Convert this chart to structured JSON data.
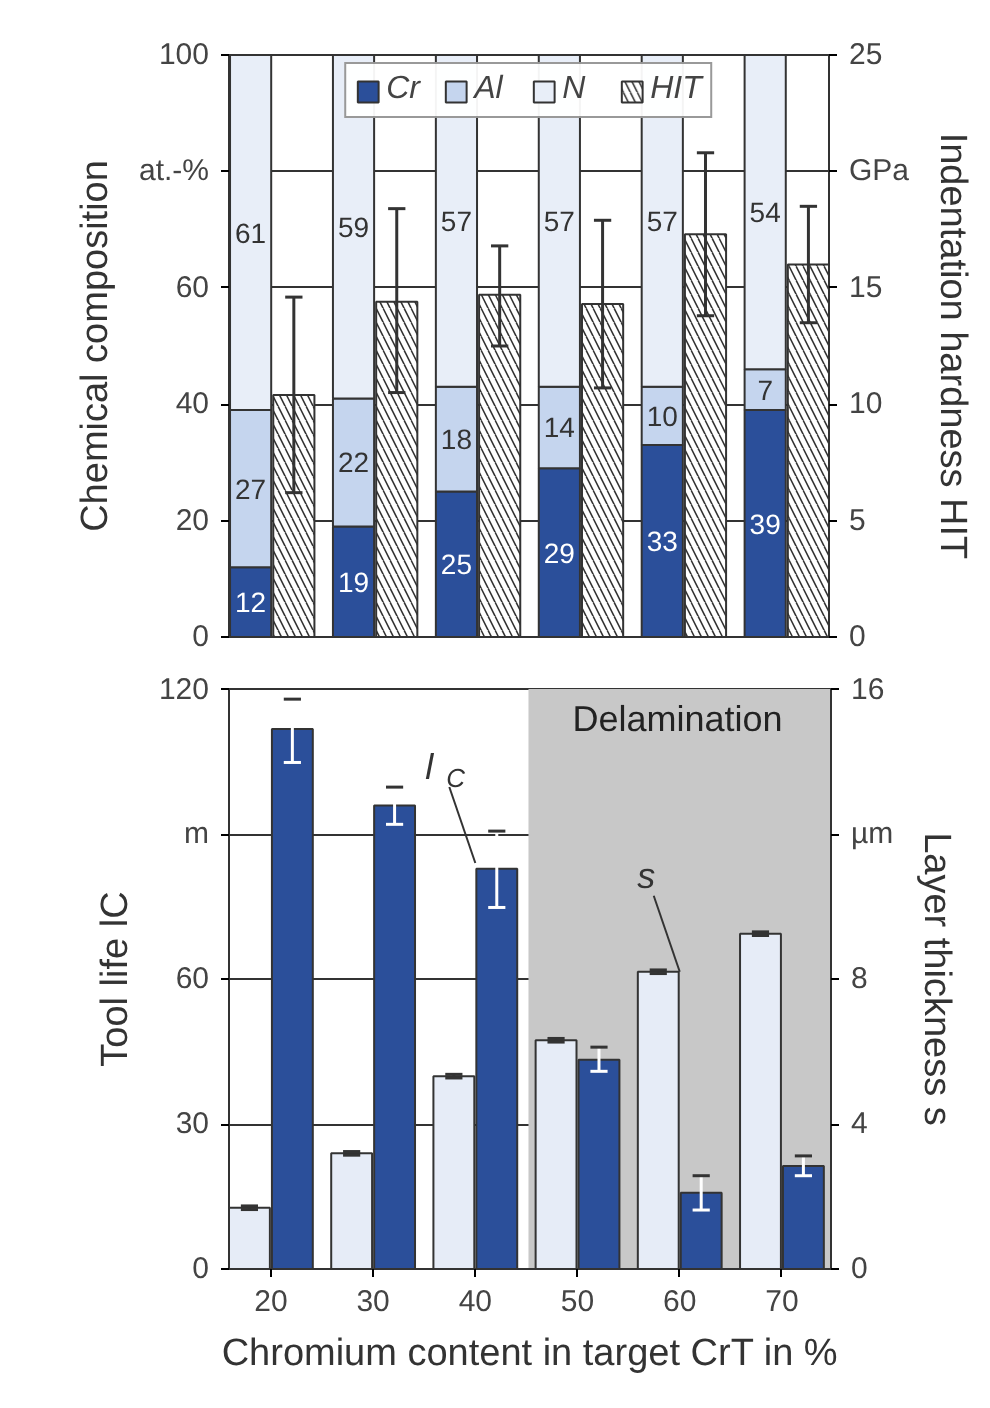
{
  "chart_data": [
    {
      "type": "bar",
      "ylabel": "Chemical composition",
      "y2label": "Indentation hardness HIT",
      "stacked": true,
      "grid": "y",
      "legend": "top",
      "tick_labels": "y",
      "categories": [
        null,
        null,
        null,
        null,
        null,
        null
      ],
      "ylim": [
        0,
        100
      ],
      "yticks": [
        0,
        20,
        40,
        60,
        {
          "value": 80,
          "label": "at.-%"
        },
        100
      ],
      "y2lim": [
        0,
        25
      ],
      "y2ticks": [
        0,
        5,
        10,
        15,
        {
          "value": 20,
          "label": "GPa"
        },
        25
      ],
      "series": [
        {
          "name": "Cr",
          "color": "#2b4f9a",
          "values": [
            12,
            19,
            25,
            29,
            33,
            39
          ],
          "value_labels": [
            "12",
            "19",
            "25",
            "29",
            "33",
            "39"
          ]
        },
        {
          "name": "Al",
          "color": "#c5d5ee",
          "values": [
            27,
            22,
            18,
            14,
            10,
            7
          ],
          "value_labels": [
            "27",
            "22",
            "18",
            "14",
            "10",
            "7"
          ]
        },
        {
          "name": "N",
          "color": "#e8eef8",
          "values": [
            61,
            59,
            57,
            57,
            57,
            54
          ],
          "value_labels": [
            "61",
            "59",
            "57",
            "57",
            "57",
            "54"
          ]
        },
        {
          "name": "HIT",
          "color": "#ffffff",
          "axis": "y2",
          "values": [
            10.4,
            14.4,
            14.7,
            14.3,
            17.3,
            16.0
          ],
          "errors": [
            [
              6.2,
              14.6
            ],
            [
              10.5,
              18.4
            ],
            [
              12.5,
              16.8
            ],
            [
              10.7,
              17.9
            ],
            [
              13.8,
              20.8
            ],
            [
              13.5,
              18.5
            ]
          ]
        }
      ]
    },
    {
      "type": "bar",
      "ylabel": "Tool life lC",
      "y2label": "Layer thickness s",
      "xlabel": "Chromium content in target CrT in %",
      "grid": "y",
      "x": [
        20,
        30,
        40,
        50,
        60,
        70
      ],
      "xlim": [
        15.9,
        74.8
      ],
      "xticks": [
        20,
        30,
        40,
        50,
        60,
        70
      ],
      "ylim": [
        0,
        120
      ],
      "yticks": [
        0,
        30,
        60,
        {
          "value": 90,
          "label": "m"
        },
        120
      ],
      "y2lim": [
        0,
        16
      ],
      "y2ticks": [
        0,
        4,
        8,
        {
          "value": 12,
          "label": "µm"
        },
        16
      ],
      "bands": [
        {
          "axis": "x",
          "from": 45.2,
          "to": 74.8,
          "label": "Delamination",
          "color": "#c8c8c8"
        }
      ],
      "annotations": [
        {
          "text": "l$_{C}$",
          "x": 40,
          "y": 84
        },
        {
          "text": "s",
          "x": 60,
          "y": 61.5
        }
      ],
      "series": [
        {
          "color": "#e6ecf7",
          "axis": "y2",
          "values": [
            1.69,
            3.19,
            5.32,
            6.31,
            8.2,
            9.25
          ],
          "errors": [
            0.05,
            0.05,
            0.05,
            0.05,
            0.05,
            0.05
          ]
        },
        {
          "color": "#2b4f9a",
          "values": [
            111.7,
            95.9,
            82.8,
            43.3,
            15.8,
            21.3
          ],
          "errors": [
            [
              104.8,
              117.9
            ],
            [
              92,
              99.7
            ],
            [
              74.8,
              90.6
            ],
            [
              40.9,
              45.9
            ],
            [
              12.2,
              19.3
            ],
            [
              19.3,
              23.4
            ]
          ]
        }
      ]
    }
  ]
}
